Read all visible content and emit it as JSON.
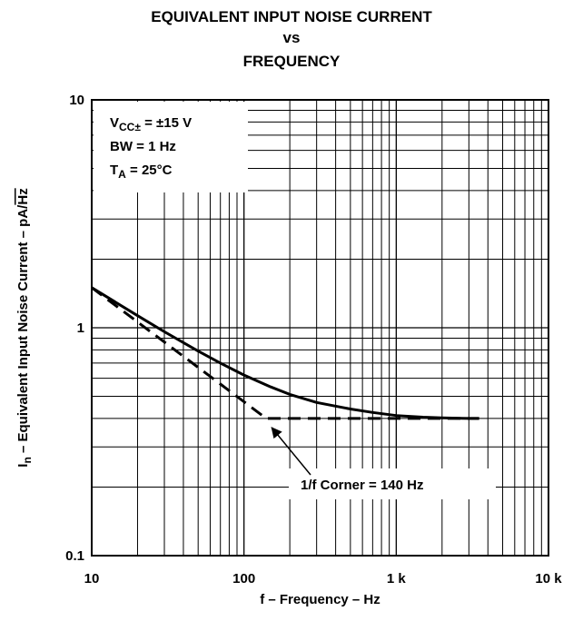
{
  "chart_data": {
    "type": "line",
    "title_lines": [
      "EQUIVALENT INPUT NOISE CURRENT",
      "vs",
      "FREQUENCY"
    ],
    "xlabel": "f – Frequency – Hz",
    "ylabel": {
      "symbol": "I",
      "subscript": "n",
      "text": " – Equivalent Input Noise Current – pA/",
      "radicand": "Hz"
    },
    "x_scale": "log",
    "y_scale": "log",
    "xlim": [
      10,
      10000
    ],
    "ylim": [
      0.1,
      10
    ],
    "x_ticks": [
      {
        "value": 10,
        "label": "10"
      },
      {
        "value": 100,
        "label": "100"
      },
      {
        "value": 1000,
        "label": "1 k"
      },
      {
        "value": 10000,
        "label": "10 k"
      }
    ],
    "y_ticks": [
      {
        "value": 0.1,
        "label": "0.1"
      },
      {
        "value": 1,
        "label": "1"
      },
      {
        "value": 10,
        "label": "10"
      }
    ],
    "grid": true,
    "conditions": {
      "vcc_main": "V",
      "vcc_sub": "CC",
      "vcc_pm": "±",
      "vcc_value": " = ±15 V",
      "bw": "BW = 1 Hz",
      "ta_main": "T",
      "ta_sub": "A",
      "ta_value": " = 25°C"
    },
    "series": [
      {
        "style": "solid",
        "x": [
          10,
          20,
          30,
          50,
          70,
          100,
          150,
          200,
          300,
          500,
          700,
          1000,
          1500,
          2000,
          3000,
          3500
        ],
        "y": [
          1.5,
          1.13,
          0.96,
          0.79,
          0.7,
          0.62,
          0.55,
          0.51,
          0.47,
          0.44,
          0.425,
          0.412,
          0.405,
          0.402,
          0.4,
          0.4
        ]
      },
      {
        "style": "dashed",
        "x": [
          10,
          140,
          3500
        ],
        "y": [
          1.5,
          0.4,
          0.4
        ]
      }
    ],
    "annotation": {
      "text": "1/f Corner = 140 Hz",
      "target": {
        "x": 140,
        "y": 0.4
      }
    }
  }
}
